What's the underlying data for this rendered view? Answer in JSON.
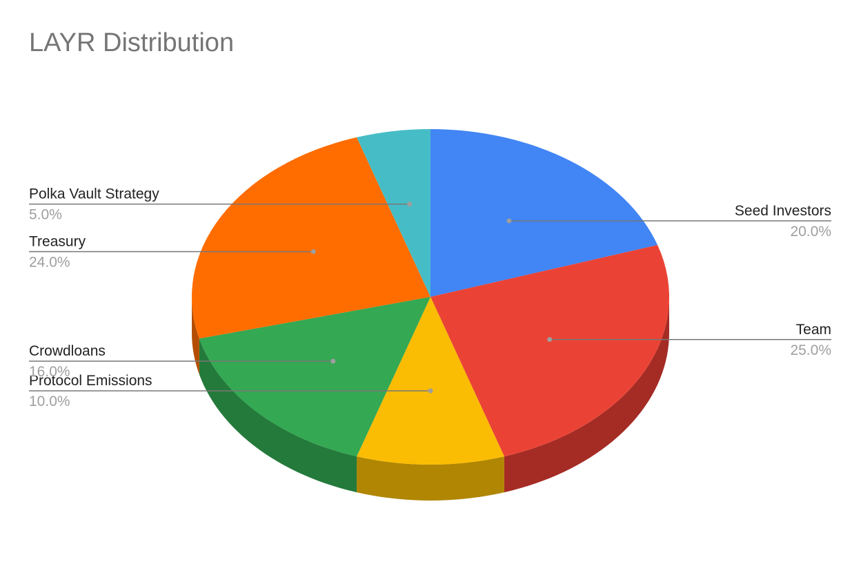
{
  "chart_data": {
    "type": "pie",
    "title": "LAYR Distribution",
    "is_3d": true,
    "slices": [
      {
        "label": "Seed Investors",
        "value": 20.0,
        "percent_label": "20.0%",
        "color": "#4285f4"
      },
      {
        "label": "Team",
        "value": 25.0,
        "percent_label": "25.0%",
        "color": "#ea4335"
      },
      {
        "label": "Protocol Emissions",
        "value": 10.0,
        "percent_label": "10.0%",
        "color": "#fbbc04"
      },
      {
        "label": "Crowdloans",
        "value": 16.0,
        "percent_label": "16.0%",
        "color": "#34a853"
      },
      {
        "label": "Treasury",
        "value": 24.0,
        "percent_label": "24.0%",
        "color": "#ff6d01"
      },
      {
        "label": "Polka Vault Strategy",
        "value": 5.0,
        "percent_label": "5.0%",
        "color": "#46bdc6"
      }
    ],
    "side_colors": [
      "#2f5fb0",
      "#a52b25",
      "#b08603",
      "#247a3b",
      "#b44d01",
      "#318790"
    ],
    "start_angle_deg": 0,
    "direction": "clockwise",
    "legend": "none"
  }
}
